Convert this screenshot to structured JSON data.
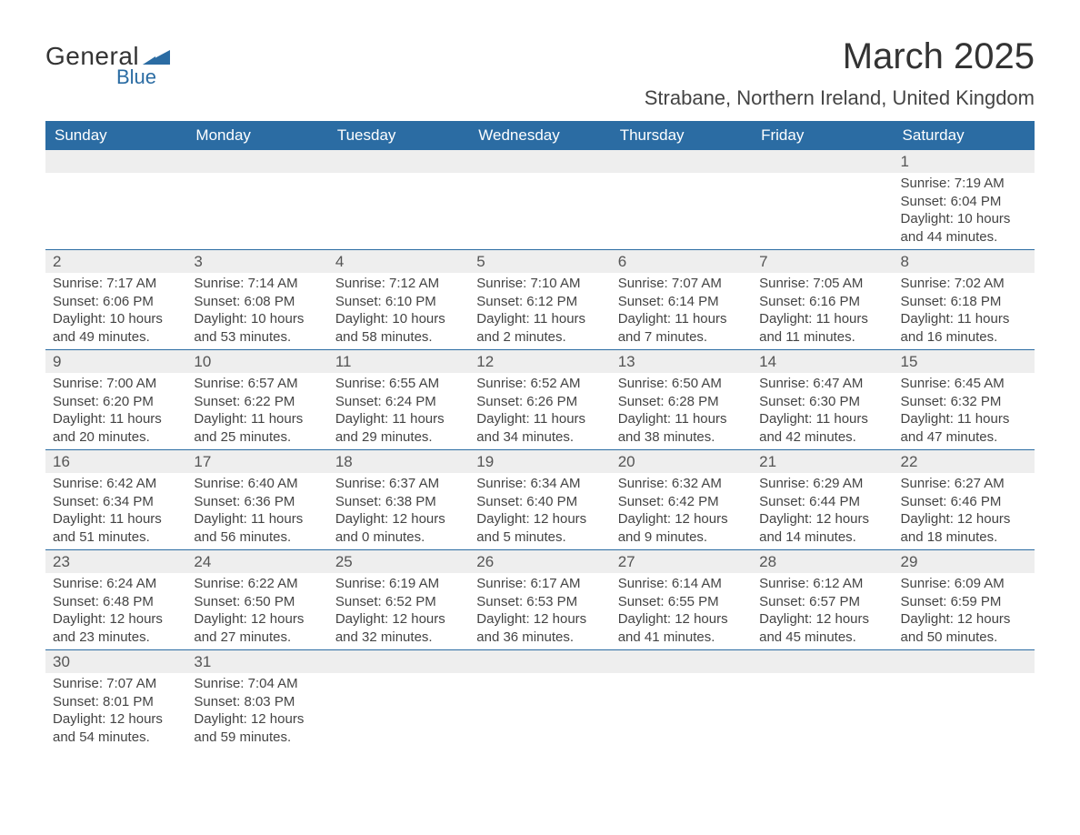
{
  "logo": {
    "text1": "General",
    "text2": "Blue",
    "shape_color": "#2b6ca3"
  },
  "title": "March 2025",
  "location": "Strabane, Northern Ireland, United Kingdom",
  "colors": {
    "header_bg": "#2b6ca3",
    "header_text": "#ffffff",
    "daynum_bg": "#eeeeee",
    "border": "#2b6ca3",
    "text": "#444444"
  },
  "typography": {
    "title_fontsize": 40,
    "location_fontsize": 22,
    "header_fontsize": 17,
    "daynum_fontsize": 17,
    "body_fontsize": 15
  },
  "day_headers": [
    "Sunday",
    "Monday",
    "Tuesday",
    "Wednesday",
    "Thursday",
    "Friday",
    "Saturday"
  ],
  "weeks": [
    [
      {
        "num": "",
        "lines": [
          "",
          "",
          "",
          ""
        ]
      },
      {
        "num": "",
        "lines": [
          "",
          "",
          "",
          ""
        ]
      },
      {
        "num": "",
        "lines": [
          "",
          "",
          "",
          ""
        ]
      },
      {
        "num": "",
        "lines": [
          "",
          "",
          "",
          ""
        ]
      },
      {
        "num": "",
        "lines": [
          "",
          "",
          "",
          ""
        ]
      },
      {
        "num": "",
        "lines": [
          "",
          "",
          "",
          ""
        ]
      },
      {
        "num": "1",
        "lines": [
          "Sunrise: 7:19 AM",
          "Sunset: 6:04 PM",
          "Daylight: 10 hours",
          "and 44 minutes."
        ]
      }
    ],
    [
      {
        "num": "2",
        "lines": [
          "Sunrise: 7:17 AM",
          "Sunset: 6:06 PM",
          "Daylight: 10 hours",
          "and 49 minutes."
        ]
      },
      {
        "num": "3",
        "lines": [
          "Sunrise: 7:14 AM",
          "Sunset: 6:08 PM",
          "Daylight: 10 hours",
          "and 53 minutes."
        ]
      },
      {
        "num": "4",
        "lines": [
          "Sunrise: 7:12 AM",
          "Sunset: 6:10 PM",
          "Daylight: 10 hours",
          "and 58 minutes."
        ]
      },
      {
        "num": "5",
        "lines": [
          "Sunrise: 7:10 AM",
          "Sunset: 6:12 PM",
          "Daylight: 11 hours",
          "and 2 minutes."
        ]
      },
      {
        "num": "6",
        "lines": [
          "Sunrise: 7:07 AM",
          "Sunset: 6:14 PM",
          "Daylight: 11 hours",
          "and 7 minutes."
        ]
      },
      {
        "num": "7",
        "lines": [
          "Sunrise: 7:05 AM",
          "Sunset: 6:16 PM",
          "Daylight: 11 hours",
          "and 11 minutes."
        ]
      },
      {
        "num": "8",
        "lines": [
          "Sunrise: 7:02 AM",
          "Sunset: 6:18 PM",
          "Daylight: 11 hours",
          "and 16 minutes."
        ]
      }
    ],
    [
      {
        "num": "9",
        "lines": [
          "Sunrise: 7:00 AM",
          "Sunset: 6:20 PM",
          "Daylight: 11 hours",
          "and 20 minutes."
        ]
      },
      {
        "num": "10",
        "lines": [
          "Sunrise: 6:57 AM",
          "Sunset: 6:22 PM",
          "Daylight: 11 hours",
          "and 25 minutes."
        ]
      },
      {
        "num": "11",
        "lines": [
          "Sunrise: 6:55 AM",
          "Sunset: 6:24 PM",
          "Daylight: 11 hours",
          "and 29 minutes."
        ]
      },
      {
        "num": "12",
        "lines": [
          "Sunrise: 6:52 AM",
          "Sunset: 6:26 PM",
          "Daylight: 11 hours",
          "and 34 minutes."
        ]
      },
      {
        "num": "13",
        "lines": [
          "Sunrise: 6:50 AM",
          "Sunset: 6:28 PM",
          "Daylight: 11 hours",
          "and 38 minutes."
        ]
      },
      {
        "num": "14",
        "lines": [
          "Sunrise: 6:47 AM",
          "Sunset: 6:30 PM",
          "Daylight: 11 hours",
          "and 42 minutes."
        ]
      },
      {
        "num": "15",
        "lines": [
          "Sunrise: 6:45 AM",
          "Sunset: 6:32 PM",
          "Daylight: 11 hours",
          "and 47 minutes."
        ]
      }
    ],
    [
      {
        "num": "16",
        "lines": [
          "Sunrise: 6:42 AM",
          "Sunset: 6:34 PM",
          "Daylight: 11 hours",
          "and 51 minutes."
        ]
      },
      {
        "num": "17",
        "lines": [
          "Sunrise: 6:40 AM",
          "Sunset: 6:36 PM",
          "Daylight: 11 hours",
          "and 56 minutes."
        ]
      },
      {
        "num": "18",
        "lines": [
          "Sunrise: 6:37 AM",
          "Sunset: 6:38 PM",
          "Daylight: 12 hours",
          "and 0 minutes."
        ]
      },
      {
        "num": "19",
        "lines": [
          "Sunrise: 6:34 AM",
          "Sunset: 6:40 PM",
          "Daylight: 12 hours",
          "and 5 minutes."
        ]
      },
      {
        "num": "20",
        "lines": [
          "Sunrise: 6:32 AM",
          "Sunset: 6:42 PM",
          "Daylight: 12 hours",
          "and 9 minutes."
        ]
      },
      {
        "num": "21",
        "lines": [
          "Sunrise: 6:29 AM",
          "Sunset: 6:44 PM",
          "Daylight: 12 hours",
          "and 14 minutes."
        ]
      },
      {
        "num": "22",
        "lines": [
          "Sunrise: 6:27 AM",
          "Sunset: 6:46 PM",
          "Daylight: 12 hours",
          "and 18 minutes."
        ]
      }
    ],
    [
      {
        "num": "23",
        "lines": [
          "Sunrise: 6:24 AM",
          "Sunset: 6:48 PM",
          "Daylight: 12 hours",
          "and 23 minutes."
        ]
      },
      {
        "num": "24",
        "lines": [
          "Sunrise: 6:22 AM",
          "Sunset: 6:50 PM",
          "Daylight: 12 hours",
          "and 27 minutes."
        ]
      },
      {
        "num": "25",
        "lines": [
          "Sunrise: 6:19 AM",
          "Sunset: 6:52 PM",
          "Daylight: 12 hours",
          "and 32 minutes."
        ]
      },
      {
        "num": "26",
        "lines": [
          "Sunrise: 6:17 AM",
          "Sunset: 6:53 PM",
          "Daylight: 12 hours",
          "and 36 minutes."
        ]
      },
      {
        "num": "27",
        "lines": [
          "Sunrise: 6:14 AM",
          "Sunset: 6:55 PM",
          "Daylight: 12 hours",
          "and 41 minutes."
        ]
      },
      {
        "num": "28",
        "lines": [
          "Sunrise: 6:12 AM",
          "Sunset: 6:57 PM",
          "Daylight: 12 hours",
          "and 45 minutes."
        ]
      },
      {
        "num": "29",
        "lines": [
          "Sunrise: 6:09 AM",
          "Sunset: 6:59 PM",
          "Daylight: 12 hours",
          "and 50 minutes."
        ]
      }
    ],
    [
      {
        "num": "30",
        "lines": [
          "Sunrise: 7:07 AM",
          "Sunset: 8:01 PM",
          "Daylight: 12 hours",
          "and 54 minutes."
        ]
      },
      {
        "num": "31",
        "lines": [
          "Sunrise: 7:04 AM",
          "Sunset: 8:03 PM",
          "Daylight: 12 hours",
          "and 59 minutes."
        ]
      },
      {
        "num": "",
        "lines": [
          "",
          "",
          "",
          ""
        ]
      },
      {
        "num": "",
        "lines": [
          "",
          "",
          "",
          ""
        ]
      },
      {
        "num": "",
        "lines": [
          "",
          "",
          "",
          ""
        ]
      },
      {
        "num": "",
        "lines": [
          "",
          "",
          "",
          ""
        ]
      },
      {
        "num": "",
        "lines": [
          "",
          "",
          "",
          ""
        ]
      }
    ]
  ]
}
